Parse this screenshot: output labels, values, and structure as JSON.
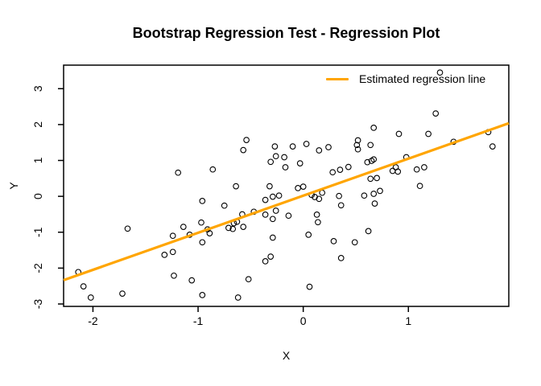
{
  "title": "Bootstrap Regression Test - Regression Plot",
  "legend": {
    "label": "Estimated regression line",
    "line_color": "#FFA500"
  },
  "chart_data": {
    "type": "scatter",
    "title": "Bootstrap Regression Test - Regression Plot",
    "xlabel": "X",
    "ylabel": "Y",
    "xlim": [
      -2.279,
      1.955
    ],
    "ylim": [
      -3.067,
      3.656
    ],
    "xticks": [
      -2,
      -1,
      0,
      1
    ],
    "yticks": [
      -3,
      -2,
      -1,
      0,
      1,
      2,
      3
    ],
    "grid": false,
    "legend_position": "topright",
    "marker": "open-circle",
    "colors": {
      "points": "#000000",
      "regression_line": "#FFA500"
    },
    "regression_line": {
      "x1": -2.279,
      "y1": -2.337,
      "x2": 1.955,
      "y2": 2.037
    },
    "points": [
      [
        -1.19,
        0.66
      ],
      [
        -0.86,
        0.75
      ],
      [
        -0.54,
        1.57
      ],
      [
        -0.57,
        1.29
      ],
      [
        -0.27,
        1.39
      ],
      [
        -0.1,
        1.39
      ],
      [
        0.03,
        1.46
      ],
      [
        0.15,
        1.28
      ],
      [
        0.24,
        1.37
      ],
      [
        -0.26,
        1.12
      ],
      [
        -0.31,
        0.96
      ],
      [
        -0.18,
        1.09
      ],
      [
        -0.17,
        0.81
      ],
      [
        -0.03,
        0.92
      ],
      [
        0.52,
        1.56
      ],
      [
        0.51,
        1.43
      ],
      [
        0.52,
        1.31
      ],
      [
        0.28,
        0.67
      ],
      [
        0.35,
        0.74
      ],
      [
        0.43,
        0.82
      ],
      [
        1.3,
        3.45
      ],
      [
        1.26,
        2.31
      ],
      [
        0.67,
        1.91
      ],
      [
        0.91,
        1.74
      ],
      [
        0.64,
        1.43
      ],
      [
        1.19,
        1.74
      ],
      [
        1.76,
        1.79
      ],
      [
        1.43,
        1.52
      ],
      [
        1.8,
        1.39
      ],
      [
        0.98,
        1.09
      ],
      [
        0.61,
        0.95
      ],
      [
        0.65,
        0.99
      ],
      [
        0.67,
        1.03
      ],
      [
        0.88,
        0.81
      ],
      [
        0.85,
        0.71
      ],
      [
        0.9,
        0.69
      ],
      [
        1.08,
        0.75
      ],
      [
        1.15,
        0.81
      ],
      [
        0.64,
        0.49
      ],
      [
        0.7,
        0.51
      ],
      [
        1.11,
        0.29
      ],
      [
        0.58,
        0.02
      ],
      [
        0.67,
        0.07
      ],
      [
        0.73,
        0.15
      ],
      [
        0.68,
        -0.2
      ],
      [
        -0.96,
        -0.13
      ],
      [
        -1.67,
        -0.9
      ],
      [
        -1.14,
        -0.85
      ],
      [
        -1.24,
        -1.1
      ],
      [
        -1.08,
        -1.07
      ],
      [
        -0.97,
        -0.73
      ],
      [
        -0.91,
        -0.92
      ],
      [
        -0.89,
        -1.03
      ],
      [
        -0.96,
        -1.28
      ],
      [
        -1.32,
        -1.63
      ],
      [
        -1.24,
        -1.55
      ],
      [
        -2.14,
        -2.11
      ],
      [
        -1.23,
        -2.21
      ],
      [
        -2.09,
        -2.51
      ],
      [
        -1.06,
        -2.34
      ],
      [
        -2.02,
        -2.82
      ],
      [
        -1.72,
        -2.71
      ],
      [
        -0.96,
        -2.75
      ],
      [
        -0.64,
        0.28
      ],
      [
        -0.32,
        0.28
      ],
      [
        -0.05,
        0.23
      ],
      [
        0.0,
        0.27
      ],
      [
        0.08,
        0.04
      ],
      [
        0.11,
        -0.02
      ],
      [
        0.15,
        -0.07
      ],
      [
        0.18,
        0.1
      ],
      [
        -0.36,
        -0.1
      ],
      [
        -0.29,
        -0.01
      ],
      [
        -0.23,
        0.02
      ],
      [
        -0.75,
        -0.26
      ],
      [
        -0.58,
        -0.5
      ],
      [
        -0.47,
        -0.43
      ],
      [
        -0.26,
        -0.4
      ],
      [
        -0.36,
        -0.51
      ],
      [
        -0.29,
        -0.63
      ],
      [
        -0.14,
        -0.54
      ],
      [
        0.13,
        -0.51
      ],
      [
        0.14,
        -0.72
      ],
      [
        0.34,
        0.01
      ],
      [
        0.36,
        -0.25
      ],
      [
        -0.71,
        -0.88
      ],
      [
        -0.67,
        -0.91
      ],
      [
        -0.66,
        -0.75
      ],
      [
        -0.63,
        -0.71
      ],
      [
        -0.57,
        -0.85
      ],
      [
        0.05,
        -1.07
      ],
      [
        0.29,
        -1.25
      ],
      [
        0.49,
        -1.28
      ],
      [
        0.62,
        -0.97
      ],
      [
        -0.29,
        -1.15
      ],
      [
        -0.31,
        -1.68
      ],
      [
        -0.36,
        -1.81
      ],
      [
        0.36,
        -1.72
      ],
      [
        -0.52,
        -2.31
      ],
      [
        0.06,
        -2.52
      ],
      [
        -0.62,
        -2.82
      ]
    ]
  }
}
